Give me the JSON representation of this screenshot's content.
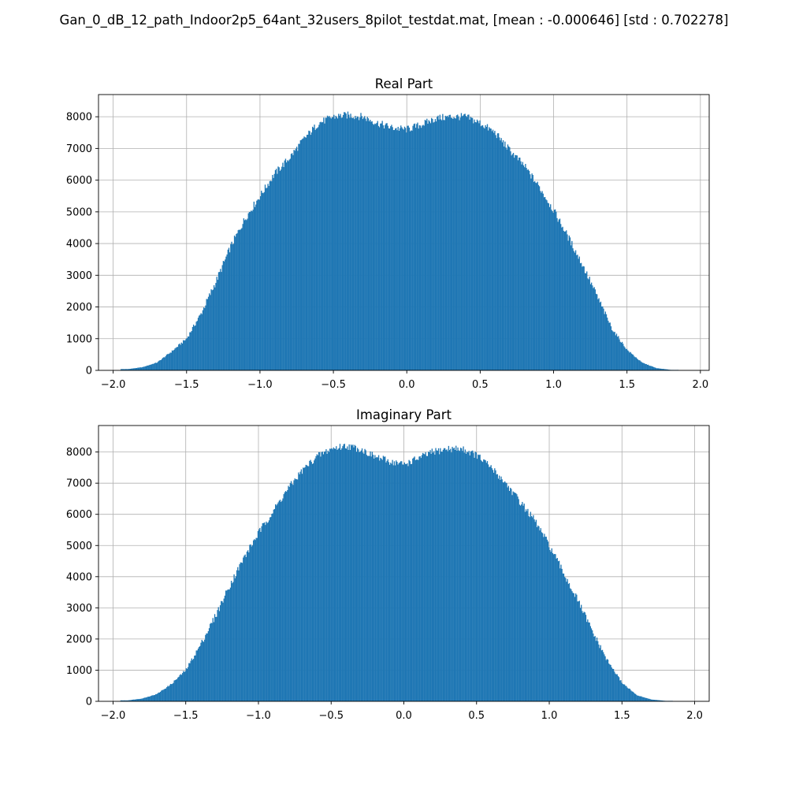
{
  "figure": {
    "suptitle": "Gan_0_dB_12_path_Indoor2p5_64ant_32users_8pilot_testdat.mat, [mean : -0.000646] [std : 0.702278]",
    "bar_color": "#1f77b4",
    "grid_color": "#b0b0b0"
  },
  "chart_data": [
    {
      "type": "bar",
      "title": "Real Part",
      "xlabel": "",
      "ylabel": "",
      "xlim": [
        -2.1,
        2.06
      ],
      "ylim": [
        0,
        8700
      ],
      "xticks": [
        -2.0,
        -1.5,
        -1.0,
        -0.5,
        0.0,
        0.5,
        1.0,
        1.5,
        2.0
      ],
      "xtick_labels": [
        "−2.0",
        "−1.5",
        "−1.0",
        "−0.5",
        "0.0",
        "0.5",
        "1.0",
        "1.5",
        "2.0"
      ],
      "yticks": [
        0,
        1000,
        2000,
        3000,
        4000,
        5000,
        6000,
        7000,
        8000
      ],
      "ytick_labels": [
        "0",
        "1000",
        "2000",
        "3000",
        "4000",
        "5000",
        "6000",
        "7000",
        "8000"
      ],
      "grid": true,
      "x": [
        -1.9,
        -1.8,
        -1.7,
        -1.6,
        -1.5,
        -1.4,
        -1.3,
        -1.2,
        -1.1,
        -1.0,
        -0.9,
        -0.8,
        -0.7,
        -0.6,
        -0.5,
        -0.4,
        -0.3,
        -0.2,
        -0.1,
        0.0,
        0.1,
        0.2,
        0.3,
        0.4,
        0.5,
        0.6,
        0.7,
        0.8,
        0.9,
        1.0,
        1.1,
        1.2,
        1.3,
        1.4,
        1.5,
        1.6,
        1.7,
        1.8
      ],
      "values": [
        40,
        100,
        250,
        600,
        1000,
        1800,
        2800,
        3900,
        4800,
        5500,
        6200,
        6700,
        7300,
        7800,
        8000,
        8050,
        8000,
        7800,
        7650,
        7600,
        7750,
        7950,
        8000,
        8000,
        7800,
        7500,
        6950,
        6450,
        5800,
        5050,
        4200,
        3300,
        2300,
        1300,
        650,
        250,
        70,
        15
      ]
    },
    {
      "type": "bar",
      "title": "Imaginary Part",
      "xlabel": "",
      "ylabel": "",
      "xlim": [
        -2.1,
        2.1
      ],
      "ylim": [
        0,
        8850
      ],
      "xticks": [
        -2.0,
        -1.5,
        -1.0,
        -0.5,
        0.0,
        0.5,
        1.0,
        1.5,
        2.0
      ],
      "xtick_labels": [
        "−2.0",
        "−1.5",
        "−1.0",
        "−0.5",
        "0.0",
        "0.5",
        "1.0",
        "1.5",
        "2.0"
      ],
      "yticks": [
        0,
        1000,
        2000,
        3000,
        4000,
        5000,
        6000,
        7000,
        8000
      ],
      "ytick_labels": [
        "0",
        "1000",
        "2000",
        "3000",
        "4000",
        "5000",
        "6000",
        "7000",
        "8000"
      ],
      "grid": true,
      "x": [
        -1.9,
        -1.8,
        -1.7,
        -1.6,
        -1.5,
        -1.4,
        -1.3,
        -1.2,
        -1.1,
        -1.0,
        -0.9,
        -0.8,
        -0.7,
        -0.6,
        -0.5,
        -0.4,
        -0.3,
        -0.2,
        -0.1,
        0.0,
        0.1,
        0.2,
        0.3,
        0.4,
        0.5,
        0.6,
        0.7,
        0.8,
        0.9,
        1.0,
        1.1,
        1.2,
        1.3,
        1.4,
        1.5,
        1.6,
        1.7,
        1.8
      ],
      "values": [
        30,
        90,
        230,
        550,
        1000,
        1800,
        2700,
        3700,
        4600,
        5400,
        6100,
        6800,
        7400,
        7850,
        8100,
        8200,
        8100,
        7850,
        7700,
        7600,
        7800,
        8000,
        8100,
        8100,
        7900,
        7500,
        7000,
        6400,
        5800,
        5000,
        4100,
        3200,
        2200,
        1300,
        600,
        200,
        60,
        15
      ]
    }
  ]
}
